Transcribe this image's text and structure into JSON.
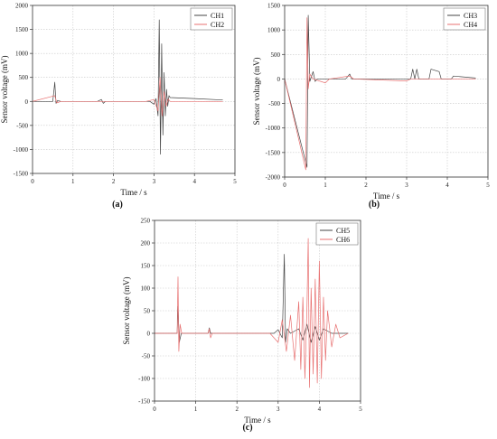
{
  "chart_data": [
    {
      "panel": "(a)",
      "type": "line",
      "xlabel": "Time / s",
      "ylabel": "Sensor voltage (mV)",
      "xlim": [
        0,
        5
      ],
      "ylim": [
        -1500,
        2000
      ],
      "xticks": [
        0,
        1,
        2,
        3,
        4,
        5
      ],
      "yticks": [
        -1500,
        -1000,
        -500,
        0,
        500,
        1000,
        1500,
        2000
      ],
      "grid": true,
      "legend": "top-right",
      "series": [
        {
          "name": "CH1",
          "color": "#444444",
          "points": [
            [
              0,
              0
            ],
            [
              0.5,
              0
            ],
            [
              0.55,
              400
            ],
            [
              0.58,
              -40
            ],
            [
              0.62,
              20
            ],
            [
              0.7,
              0
            ],
            [
              1.6,
              0
            ],
            [
              1.7,
              40
            ],
            [
              1.75,
              -40
            ],
            [
              1.8,
              0
            ],
            [
              2.9,
              0
            ],
            [
              3.0,
              -60
            ],
            [
              3.05,
              60
            ],
            [
              3.1,
              -300
            ],
            [
              3.13,
              1700
            ],
            [
              3.16,
              -1100
            ],
            [
              3.19,
              1200
            ],
            [
              3.22,
              -700
            ],
            [
              3.25,
              600
            ],
            [
              3.28,
              -300
            ],
            [
              3.31,
              250
            ],
            [
              3.34,
              -100
            ],
            [
              3.37,
              120
            ],
            [
              3.4,
              80
            ],
            [
              4.0,
              60
            ],
            [
              4.7,
              30
            ]
          ]
        },
        {
          "name": "CH2",
          "color": "#e87070",
          "points": [
            [
              0,
              0
            ],
            [
              0.55,
              120
            ],
            [
              0.6,
              -30
            ],
            [
              0.7,
              0
            ],
            [
              2.8,
              0
            ],
            [
              3.0,
              40
            ],
            [
              3.1,
              -200
            ],
            [
              3.15,
              500
            ],
            [
              3.2,
              -300
            ],
            [
              3.25,
              200
            ],
            [
              3.3,
              -100
            ],
            [
              3.35,
              50
            ],
            [
              3.4,
              0
            ],
            [
              4.7,
              0
            ]
          ]
        }
      ]
    },
    {
      "panel": "(b)",
      "type": "line",
      "xlabel": "Time / s",
      "ylabel": "Sensor voltage (mV)",
      "xlim": [
        0,
        5
      ],
      "ylim": [
        -2000,
        1500
      ],
      "xticks": [
        0,
        1,
        2,
        3,
        4,
        5
      ],
      "yticks": [
        -2000,
        -1500,
        -1000,
        -500,
        0,
        500,
        1000,
        1500
      ],
      "grid": true,
      "legend": "top-right",
      "series": [
        {
          "name": "CH3",
          "color": "#444444",
          "points": [
            [
              0,
              0
            ],
            [
              0.55,
              -1800
            ],
            [
              0.58,
              1300
            ],
            [
              0.62,
              -50
            ],
            [
              0.7,
              150
            ],
            [
              0.75,
              -50
            ],
            [
              0.8,
              0
            ],
            [
              1.5,
              0
            ],
            [
              1.6,
              100
            ],
            [
              1.65,
              0
            ],
            [
              3.1,
              0
            ],
            [
              3.15,
              200
            ],
            [
              3.2,
              0
            ],
            [
              3.25,
              200
            ],
            [
              3.3,
              0
            ],
            [
              3.55,
              0
            ],
            [
              3.6,
              200
            ],
            [
              3.8,
              150
            ],
            [
              3.85,
              0
            ],
            [
              4.1,
              0
            ],
            [
              4.15,
              60
            ],
            [
              4.7,
              20
            ]
          ]
        },
        {
          "name": "CH4",
          "color": "#e87070",
          "points": [
            [
              0,
              0
            ],
            [
              0.52,
              -1850
            ],
            [
              0.55,
              1250
            ],
            [
              0.58,
              -200
            ],
            [
              0.62,
              100
            ],
            [
              0.7,
              0
            ],
            [
              1.0,
              -80
            ],
            [
              1.1,
              0
            ],
            [
              1.6,
              60
            ],
            [
              1.7,
              0
            ],
            [
              3.0,
              -40
            ],
            [
              3.1,
              0
            ],
            [
              4.7,
              0
            ]
          ]
        }
      ]
    },
    {
      "panel": "(c)",
      "type": "line",
      "xlabel": "Time / s",
      "ylabel": "Sensor voltage (mV)",
      "xlim": [
        0,
        5
      ],
      "ylim": [
        -150,
        250
      ],
      "xticks": [
        0,
        1,
        2,
        3,
        4,
        5
      ],
      "yticks": [
        -150,
        -100,
        -50,
        0,
        50,
        100,
        150,
        200,
        250
      ],
      "grid": true,
      "legend": "top-right",
      "series": [
        {
          "name": "CH5",
          "color": "#444444",
          "points": [
            [
              0,
              0
            ],
            [
              0.55,
              0
            ],
            [
              0.57,
              60
            ],
            [
              0.6,
              -20
            ],
            [
              0.65,
              0
            ],
            [
              1.3,
              0
            ],
            [
              1.33,
              12
            ],
            [
              1.36,
              0
            ],
            [
              2.9,
              0
            ],
            [
              3.0,
              8
            ],
            [
              3.1,
              -10
            ],
            [
              3.15,
              175
            ],
            [
              3.18,
              -20
            ],
            [
              3.22,
              10
            ],
            [
              3.3,
              0
            ],
            [
              3.5,
              10
            ],
            [
              3.6,
              -15
            ],
            [
              3.7,
              20
            ],
            [
              3.8,
              -20
            ],
            [
              3.9,
              15
            ],
            [
              4.0,
              -15
            ],
            [
              4.1,
              10
            ],
            [
              4.3,
              0
            ],
            [
              4.7,
              0
            ]
          ]
        },
        {
          "name": "CH6",
          "color": "#e87070",
          "points": [
            [
              0,
              0
            ],
            [
              0.55,
              0
            ],
            [
              0.57,
              125
            ],
            [
              0.59,
              -40
            ],
            [
              0.62,
              20
            ],
            [
              0.66,
              0
            ],
            [
              1.3,
              0
            ],
            [
              1.33,
              10
            ],
            [
              1.36,
              -10
            ],
            [
              1.4,
              0
            ],
            [
              2.8,
              0
            ],
            [
              3.0,
              -20
            ],
            [
              3.1,
              30
            ],
            [
              3.2,
              -40
            ],
            [
              3.3,
              40
            ],
            [
              3.4,
              -60
            ],
            [
              3.5,
              70
            ],
            [
              3.55,
              -80
            ],
            [
              3.6,
              80
            ],
            [
              3.65,
              -100
            ],
            [
              3.7,
              60
            ],
            [
              3.73,
              210
            ],
            [
              3.76,
              -120
            ],
            [
              3.8,
              100
            ],
            [
              3.85,
              -90
            ],
            [
              3.9,
              120
            ],
            [
              3.95,
              -110
            ],
            [
              4.0,
              160
            ],
            [
              4.05,
              -100
            ],
            [
              4.1,
              80
            ],
            [
              4.15,
              -60
            ],
            [
              4.2,
              50
            ],
            [
              4.3,
              -30
            ],
            [
              4.4,
              20
            ],
            [
              4.5,
              -10
            ],
            [
              4.7,
              0
            ]
          ]
        }
      ]
    }
  ]
}
